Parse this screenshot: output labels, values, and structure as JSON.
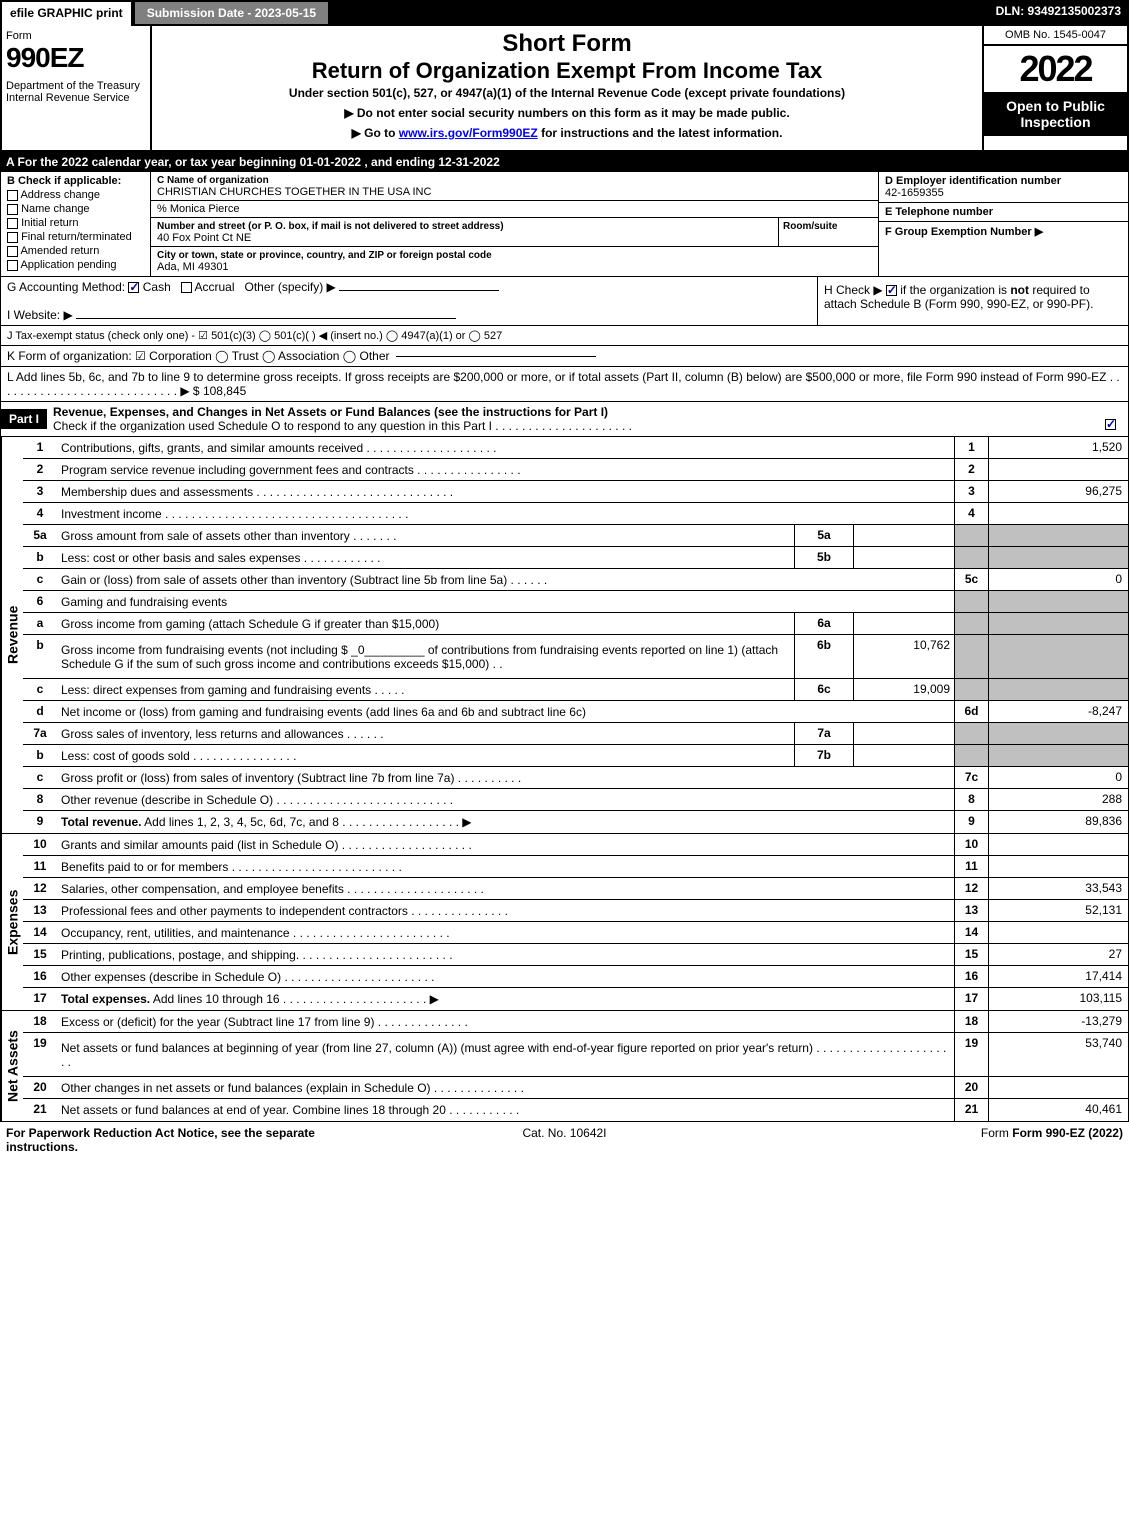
{
  "topbar": {
    "efile": "efile GRAPHIC print",
    "subdate": "Submission Date - 2023-05-15",
    "dln": "DLN: 93492135002373"
  },
  "header": {
    "form": "Form",
    "num": "990EZ",
    "dept": "Department of the Treasury\nInternal Revenue Service",
    "sf": "Short Form",
    "title": "Return of Organization Exempt From Income Tax",
    "sub": "Under section 501(c), 527, or 4947(a)(1) of the Internal Revenue Code (except private foundations)",
    "note1": "▶ Do not enter social security numbers on this form as it may be made public.",
    "note2_pre": "▶ Go to ",
    "note2_link": "www.irs.gov/Form990EZ",
    "note2_post": " for instructions and the latest information.",
    "omb": "OMB No. 1545-0047",
    "year": "2022",
    "badge": "Open to Public Inspection"
  },
  "A": "A  For the 2022 calendar year, or tax year beginning 01-01-2022 , and ending 12-31-2022",
  "B": {
    "hd": "B  Check if applicable:",
    "items": [
      "Address change",
      "Name change",
      "Initial return",
      "Final return/terminated",
      "Amended return",
      "Application pending"
    ]
  },
  "C": {
    "name_lbl": "C Name of organization",
    "name": "CHRISTIAN CHURCHES TOGETHER IN THE USA INC",
    "care": "% Monica Pierce",
    "street_lbl": "Number and street (or P. O. box, if mail is not delivered to street address)",
    "room_lbl": "Room/suite",
    "street": "40 Fox Point Ct NE",
    "city_lbl": "City or town, state or province, country, and ZIP or foreign postal code",
    "city": "Ada, MI  49301"
  },
  "D": {
    "lbl": "D Employer identification number",
    "val": "42-1659355"
  },
  "E": {
    "lbl": "E Telephone number",
    "val": ""
  },
  "F": {
    "lbl": "F Group Exemption Number  ▶",
    "val": ""
  },
  "G": {
    "lbl": "G Accounting Method:",
    "cash": "Cash",
    "accrual": "Accrual",
    "other": "Other (specify) ▶"
  },
  "H": {
    "txt1": "H  Check ▶ ",
    "txt2": " if the organization is ",
    "not": "not",
    "txt3": " required to attach Schedule B (Form 990, 990-EZ, or 990-PF)."
  },
  "I": "I Website: ▶",
  "J": "J Tax-exempt status (check only one) -  ☑ 501(c)(3)  ◯ 501(c)(  ) ◀ (insert no.)  ◯ 4947(a)(1) or  ◯ 527",
  "K": "K Form of organization:  ☑ Corporation  ◯ Trust  ◯ Association  ◯ Other",
  "L": {
    "txt": "L Add lines 5b, 6c, and 7b to line 9 to determine gross receipts. If gross receipts are $200,000 or more, or if total assets (Part II, column (B) below) are $500,000 or more, file Form 990 instead of Form 990-EZ   .  .  .  .  .  .  .  .  .  .  .  .  .  .  .  .  .  .  .  .  .  .  .  .  .  .  .  . ▶ $",
    "val": "108,845"
  },
  "part1": {
    "label": "Part I",
    "title": "Revenue, Expenses, and Changes in Net Assets or Fund Balances (see the instructions for Part I)",
    "check": "Check if the organization used Schedule O to respond to any question in this Part I  .  .  .  .  .  .  .  .  .  .  .  .  .  .  .  .  .  .  .  .  ."
  },
  "sidelabels": {
    "rev": "Revenue",
    "exp": "Expenses",
    "net": "Net Assets"
  },
  "rows": [
    {
      "n": "1",
      "d": "Contributions, gifts, grants, and similar amounts received  .  .  .  .  .  .  .  .  .  .  .  .  .  .  .  .  .  .  .  .",
      "nc": "1",
      "nv": "1,520"
    },
    {
      "n": "2",
      "d": "Program service revenue including government fees and contracts  .  .  .  .  .  .  .  .  .  .  .  .  .  .  .  .",
      "nc": "2",
      "nv": ""
    },
    {
      "n": "3",
      "d": "Membership dues and assessments  .  .  .  .  .  .  .  .  .  .  .  .  .  .  .  .  .  .  .  .  .  .  .  .  .  .  .  .  .  .",
      "nc": "3",
      "nv": "96,275"
    },
    {
      "n": "4",
      "d": "Investment income .  .  .  .  .  .  .  .  .  .  .  .  .  .  .  .  .  .  .  .  .  .  .  .  .  .  .  .  .  .  .  .  .  .  .  .  .",
      "nc": "4",
      "nv": ""
    },
    {
      "n": "5a",
      "d": "Gross amount from sale of assets other than inventory  .  .  .  .  .  .  .",
      "sc": "5a",
      "sv": "",
      "gray": true
    },
    {
      "n": "b",
      "d": "Less: cost or other basis and sales expenses  .  .  .  .  .  .  .  .  .  .  .  .",
      "sc": "5b",
      "sv": "",
      "gray": true
    },
    {
      "n": "c",
      "d": "Gain or (loss) from sale of assets other than inventory (Subtract line 5b from line 5a)  .  .  .  .  .  .",
      "nc": "5c",
      "nv": "0"
    },
    {
      "n": "6",
      "d": "Gaming and fundraising events",
      "gray": true,
      "nonum": true
    },
    {
      "n": "a",
      "d": "Gross income from gaming (attach Schedule G if greater than $15,000)",
      "sc": "6a",
      "sv": "",
      "gray": true
    },
    {
      "n": "b",
      "d": "Gross income from fundraising events (not including $ _0_________ of contributions from fundraising events reported on line 1) (attach Schedule G if the sum of such gross income and contributions exceeds $15,000)   .  .",
      "sc": "6b",
      "sv": "10,762",
      "gray": true,
      "tall": true
    },
    {
      "n": "c",
      "d": "Less: direct expenses from gaming and fundraising events   .  .  .  .  .",
      "sc": "6c",
      "sv": "19,009",
      "gray": true
    },
    {
      "n": "d",
      "d": "Net income or (loss) from gaming and fundraising events (add lines 6a and 6b and subtract line 6c)",
      "nc": "6d",
      "nv": "-8,247"
    },
    {
      "n": "7a",
      "d": "Gross sales of inventory, less returns and allowances  .  .  .  .  .  .",
      "sc": "7a",
      "sv": "",
      "gray": true
    },
    {
      "n": "b",
      "d": "Less: cost of goods sold         .  .  .  .  .  .  .  .  .  .  .  .  .  .  .  .",
      "sc": "7b",
      "sv": "",
      "gray": true
    },
    {
      "n": "c",
      "d": "Gross profit or (loss) from sales of inventory (Subtract line 7b from line 7a)  .  .  .  .  .  .  .  .  .  .",
      "nc": "7c",
      "nv": "0"
    },
    {
      "n": "8",
      "d": "Other revenue (describe in Schedule O) .  .  .  .  .  .  .  .  .  .  .  .  .  .  .  .  .  .  .  .  .  .  .  .  .  .  .",
      "nc": "8",
      "nv": "288"
    },
    {
      "n": "9",
      "d": "Total revenue. Add lines 1, 2, 3, 4, 5c, 6d, 7c, and 8  .  .  .  .  .  .  .  .  .  .  .  .  .  .  .  .  .  . ▶",
      "nc": "9",
      "nv": "89,836",
      "bold": true
    }
  ],
  "exprows": [
    {
      "n": "10",
      "d": "Grants and similar amounts paid (list in Schedule O)  .  .  .  .  .  .  .  .  .  .  .  .  .  .  .  .  .  .  .  .",
      "nc": "10",
      "nv": ""
    },
    {
      "n": "11",
      "d": "Benefits paid to or for members        .  .  .  .  .  .  .  .  .  .  .  .  .  .  .  .  .  .  .  .  .  .  .  .  .  .",
      "nc": "11",
      "nv": ""
    },
    {
      "n": "12",
      "d": "Salaries, other compensation, and employee benefits .  .  .  .  .  .  .  .  .  .  .  .  .  .  .  .  .  .  .  .  .",
      "nc": "12",
      "nv": "33,543"
    },
    {
      "n": "13",
      "d": "Professional fees and other payments to independent contractors  .  .  .  .  .  .  .  .  .  .  .  .  .  .  .",
      "nc": "13",
      "nv": "52,131"
    },
    {
      "n": "14",
      "d": "Occupancy, rent, utilities, and maintenance .  .  .  .  .  .  .  .  .  .  .  .  .  .  .  .  .  .  .  .  .  .  .  .",
      "nc": "14",
      "nv": ""
    },
    {
      "n": "15",
      "d": "Printing, publications, postage, and shipping.  .  .  .  .  .  .  .  .  .  .  .  .  .  .  .  .  .  .  .  .  .  .  .",
      "nc": "15",
      "nv": "27"
    },
    {
      "n": "16",
      "d": "Other expenses (describe in Schedule O)     .  .  .  .  .  .  .  .  .  .  .  .  .  .  .  .  .  .  .  .  .  .  .",
      "nc": "16",
      "nv": "17,414"
    },
    {
      "n": "17",
      "d": "Total expenses. Add lines 10 through 16     .  .  .  .  .  .  .  .  .  .  .  .  .  .  .  .  .  .  .  .  .  . ▶",
      "nc": "17",
      "nv": "103,115",
      "bold": true
    }
  ],
  "netrows": [
    {
      "n": "18",
      "d": "Excess or (deficit) for the year (Subtract line 17 from line 9)       .  .  .  .  .  .  .  .  .  .  .  .  .  .",
      "nc": "18",
      "nv": "-13,279"
    },
    {
      "n": "19",
      "d": "Net assets or fund balances at beginning of year (from line 27, column (A)) (must agree with end-of-year figure reported on prior year's return) .  .  .  .  .  .  .  .  .  .  .  .  .  .  .  .  .  .  .  .  .  .",
      "nc": "19",
      "nv": "53,740",
      "tall": true
    },
    {
      "n": "20",
      "d": "Other changes in net assets or fund balances (explain in Schedule O) .  .  .  .  .  .  .  .  .  .  .  .  .  .",
      "nc": "20",
      "nv": ""
    },
    {
      "n": "21",
      "d": "Net assets or fund balances at end of year. Combine lines 18 through 20  .  .  .  .  .  .  .  .  .  .  .",
      "nc": "21",
      "nv": "40,461"
    }
  ],
  "foot": {
    "pra": "For Paperwork Reduction Act Notice, see the separate instructions.",
    "cat": "Cat. No. 10642I",
    "form": "Form 990-EZ (2022)"
  }
}
